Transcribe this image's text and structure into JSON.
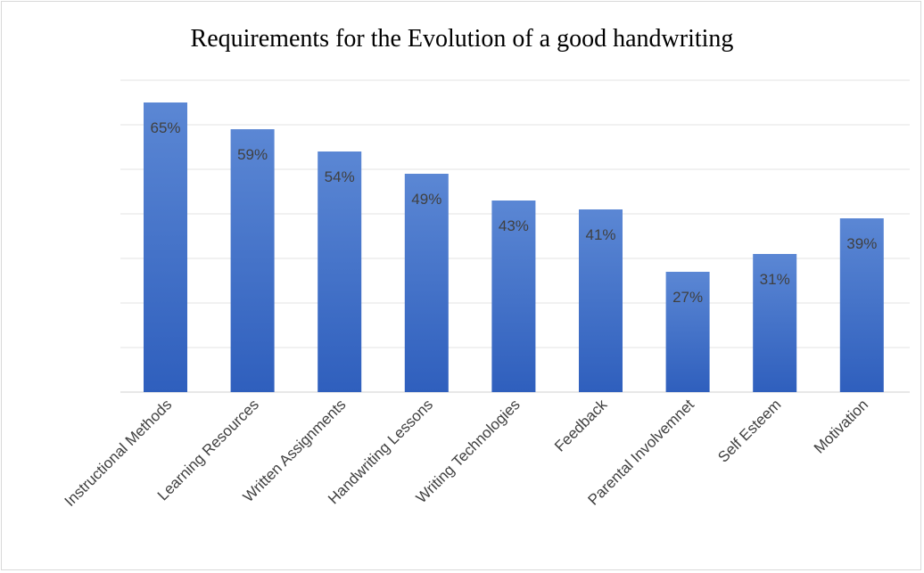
{
  "chart_data": {
    "type": "bar",
    "title": "Requirements for the Evolution of a good handwriting",
    "categories": [
      "Instructional Methods",
      "Learning Resources",
      "Written Assignments",
      "Handwriting Lessons",
      "Writing Technologies",
      "Feedback",
      "Parental Involvemnet",
      "Self Esteem",
      "Motivation"
    ],
    "values": [
      65,
      59,
      54,
      49,
      43,
      41,
      27,
      31,
      39
    ],
    "data_labels": [
      "65%",
      "59%",
      "54%",
      "49%",
      "43%",
      "41%",
      "27%",
      "31%",
      "39%"
    ],
    "ylim": [
      0,
      70
    ],
    "grid": true,
    "legend": "none",
    "bar_color_top": "#5b87d4",
    "bar_color_bottom": "#2f5fbd"
  }
}
